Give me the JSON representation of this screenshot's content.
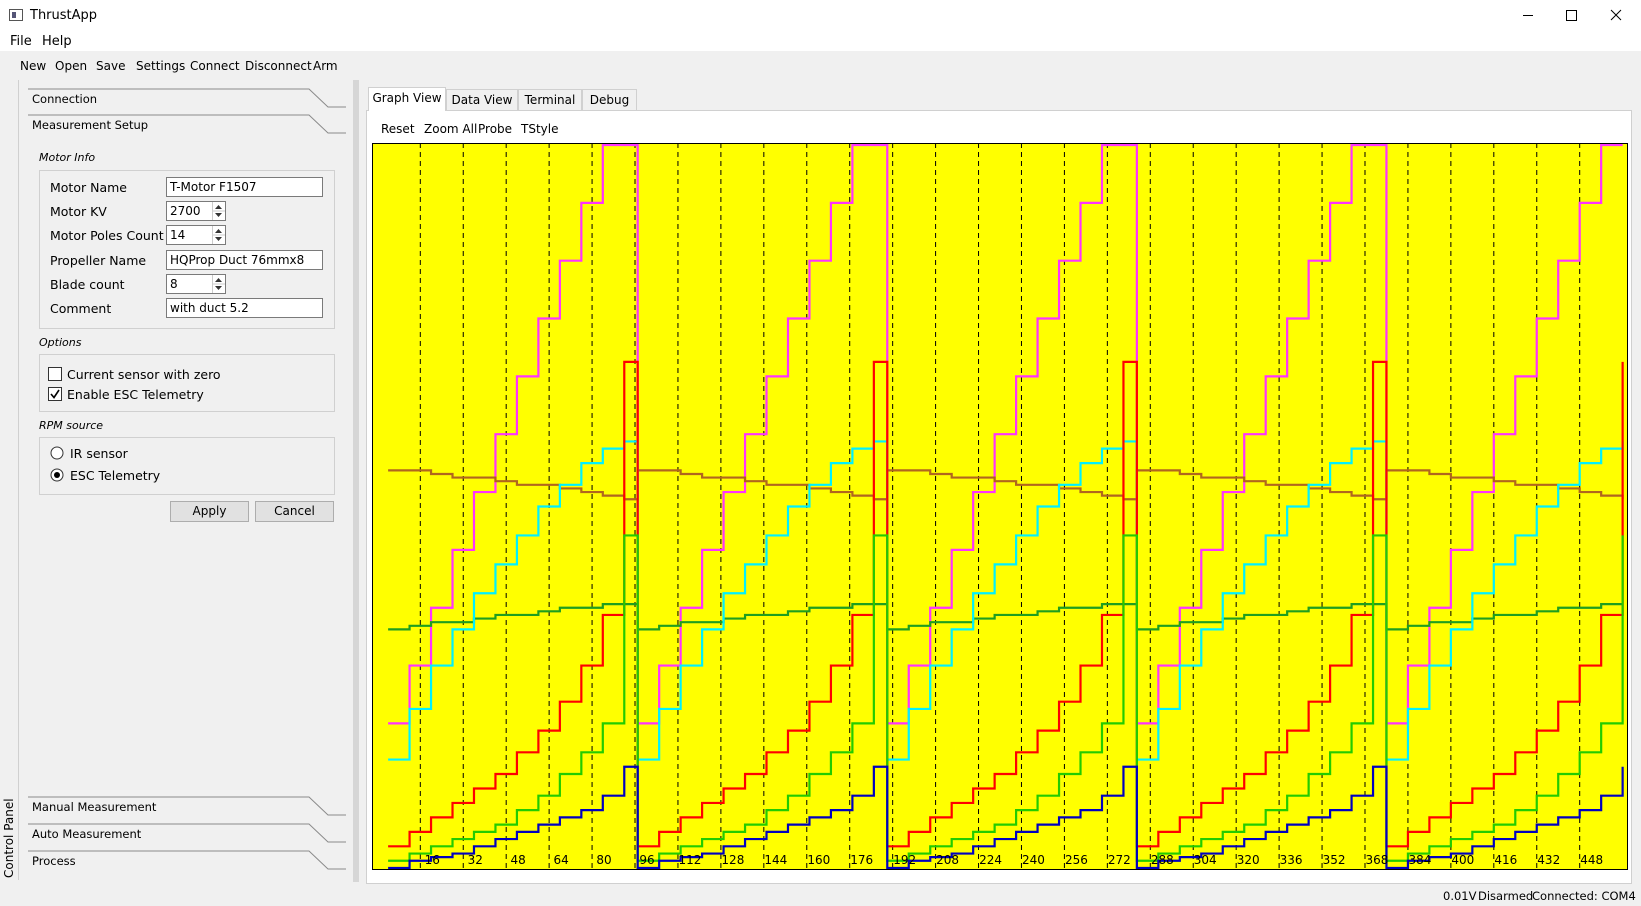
{
  "window": {
    "title": "ThrustApp"
  },
  "menu": [
    "File",
    "Help"
  ],
  "toolbar": [
    "New",
    "Open",
    "Save",
    "Settings",
    "Connect",
    "Disconnect",
    "Arm"
  ],
  "side_tab": "Control Panel",
  "sections": [
    "Connection",
    "Measurement Setup",
    "Manual Measurement",
    "Auto Measurement",
    "Process"
  ],
  "motor_info": {
    "title": "Motor Info",
    "fields": [
      {
        "label": "Motor Name",
        "value": "T-Motor F1507",
        "kind": "text"
      },
      {
        "label": "Motor KV",
        "value": "2700",
        "kind": "spin"
      },
      {
        "label": "Motor Poles Count",
        "value": "14",
        "kind": "spin"
      },
      {
        "label": "Propeller Name",
        "value": "HQProp Duct 76mmx8",
        "kind": "text"
      },
      {
        "label": "Blade count",
        "value": "8",
        "kind": "spin"
      },
      {
        "label": "Comment",
        "value": "with duct 5.2",
        "kind": "text"
      }
    ]
  },
  "options": {
    "title": "Options",
    "checkboxes": [
      {
        "label": "Current sensor with zero",
        "checked": false
      },
      {
        "label": "Enable ESC Telemetry",
        "checked": true
      }
    ]
  },
  "rpm_source": {
    "title": "RPM source",
    "radios": [
      {
        "label": "IR sensor",
        "selected": false
      },
      {
        "label": "ESC Telemetry",
        "selected": true
      }
    ]
  },
  "buttons": [
    "Apply",
    "Cancel"
  ],
  "tabs": [
    "Graph View",
    "Data View",
    "Terminal",
    "Debug"
  ],
  "graph_toolbar": [
    "Reset",
    "Zoom All",
    "Probe",
    "TStyle"
  ],
  "status": [
    "0.01V",
    "Disarmed",
    "Connected: COM4"
  ],
  "chart_data": {
    "type": "line",
    "step": true,
    "background": "#ffff00",
    "grid": true,
    "xlim": [
      -2,
      466
    ],
    "ylim": [
      0,
      100
    ],
    "xticks": [
      16,
      32,
      48,
      64,
      80,
      96,
      112,
      128,
      144,
      160,
      176,
      192,
      208,
      224,
      240,
      256,
      272,
      288,
      304,
      320,
      336,
      352,
      368,
      384,
      400,
      416,
      432,
      448
    ],
    "x": [
      4,
      12,
      20,
      28,
      36,
      44,
      52,
      60,
      68,
      76,
      84,
      92,
      97,
      105,
      113,
      121,
      129,
      137,
      145,
      153,
      161,
      169,
      177,
      185,
      190,
      198,
      206,
      214,
      222,
      230,
      238,
      246,
      254,
      262,
      270,
      278,
      283,
      291,
      299,
      307,
      315,
      323,
      331,
      339,
      347,
      355,
      363,
      371,
      376,
      384,
      392,
      400,
      408,
      416,
      424,
      432,
      440,
      448,
      456,
      464
    ],
    "series": [
      {
        "name": "magenta",
        "color": "#ff33ff",
        "values": [
          20,
          28,
          36,
          44,
          52,
          60,
          68,
          76,
          84,
          92,
          100,
          100,
          20,
          28,
          36,
          44,
          52,
          60,
          68,
          76,
          84,
          92,
          100,
          100,
          20,
          28,
          36,
          44,
          52,
          60,
          68,
          76,
          84,
          92,
          100,
          100,
          20,
          28,
          36,
          44,
          52,
          60,
          68,
          76,
          84,
          92,
          100,
          100,
          20,
          28,
          36,
          44,
          52,
          60,
          68,
          76,
          84,
          92,
          100,
          100
        ]
      },
      {
        "name": "brown",
        "color": "#b0661e",
        "values": [
          55,
          55,
          54.5,
          54,
          54,
          53.5,
          53,
          53,
          52.5,
          52,
          51.5,
          51,
          55,
          55,
          54.5,
          54,
          54,
          53.5,
          53,
          53,
          52.5,
          52,
          51.5,
          51,
          55,
          55,
          54.5,
          54,
          54,
          53.5,
          53,
          53,
          52.5,
          52,
          51.5,
          51,
          55,
          55,
          54.5,
          54,
          54,
          53.5,
          53,
          53,
          52.5,
          52,
          51.5,
          51,
          55,
          55,
          54.5,
          54,
          54,
          53.5,
          53,
          53,
          52.5,
          52,
          51.5,
          51
        ]
      },
      {
        "name": "dark-green",
        "color": "#1f9e1f",
        "values": [
          33,
          33.5,
          34,
          34,
          34.5,
          35,
          35,
          35.5,
          36,
          36,
          36.5,
          36.5,
          33,
          33.5,
          34,
          34,
          34.5,
          35,
          35,
          35.5,
          36,
          36,
          36.5,
          36.5,
          33,
          33.5,
          34,
          34,
          34.5,
          35,
          35,
          35.5,
          36,
          36,
          36.5,
          36.5,
          33,
          33.5,
          34,
          34,
          34.5,
          35,
          35,
          35.5,
          36,
          36,
          36.5,
          36.5,
          33,
          33.5,
          34,
          34,
          34.5,
          35,
          35,
          35.5,
          36,
          36,
          36.5,
          36.5
        ]
      },
      {
        "name": "cyan",
        "color": "#00f0ff",
        "values": [
          15,
          22,
          28,
          33,
          38,
          42,
          46,
          50,
          53,
          56,
          58,
          59,
          15,
          22,
          28,
          33,
          38,
          42,
          46,
          50,
          53,
          56,
          58,
          59,
          15,
          22,
          28,
          33,
          38,
          42,
          46,
          50,
          53,
          56,
          58,
          59,
          15,
          22,
          28,
          33,
          38,
          42,
          46,
          50,
          53,
          56,
          58,
          59,
          15,
          22,
          28,
          33,
          38,
          42,
          46,
          50,
          53,
          56,
          58,
          59
        ]
      },
      {
        "name": "red",
        "color": "#ff0000",
        "values": [
          3,
          5,
          7,
          9,
          11,
          13,
          16,
          19,
          23,
          28,
          35,
          70,
          3,
          5,
          7,
          9,
          11,
          13,
          16,
          19,
          23,
          28,
          35,
          70,
          3,
          5,
          7,
          9,
          11,
          13,
          16,
          19,
          23,
          28,
          35,
          70,
          3,
          5,
          7,
          9,
          11,
          13,
          16,
          19,
          23,
          28,
          35,
          70,
          3,
          5,
          7,
          9,
          11,
          13,
          16,
          19,
          23,
          28,
          35,
          70
        ]
      },
      {
        "name": "lime",
        "color": "#22cc00",
        "values": [
          1,
          2,
          3,
          4,
          5,
          6,
          8,
          10,
          13,
          16,
          20,
          46,
          1,
          2,
          3,
          4,
          5,
          6,
          8,
          10,
          13,
          16,
          20,
          46,
          1,
          2,
          3,
          4,
          5,
          6,
          8,
          10,
          13,
          16,
          20,
          46,
          1,
          2,
          3,
          4,
          5,
          6,
          8,
          10,
          13,
          16,
          20,
          46,
          1,
          2,
          3,
          4,
          5,
          6,
          8,
          10,
          13,
          16,
          20,
          46
        ]
      },
      {
        "name": "blue",
        "color": "#0000c0",
        "values": [
          0,
          1,
          1.5,
          2,
          3,
          4,
          5,
          6,
          7,
          8,
          10,
          14,
          0,
          1,
          1.5,
          2,
          3,
          4,
          5,
          6,
          7,
          8,
          10,
          14,
          0,
          1,
          1.5,
          2,
          3,
          4,
          5,
          6,
          7,
          8,
          10,
          14,
          0,
          1,
          1.5,
          2,
          3,
          4,
          5,
          6,
          7,
          8,
          10,
          14,
          0,
          1,
          1.5,
          2,
          3,
          4,
          5,
          6,
          7,
          8,
          10,
          14
        ]
      }
    ]
  }
}
